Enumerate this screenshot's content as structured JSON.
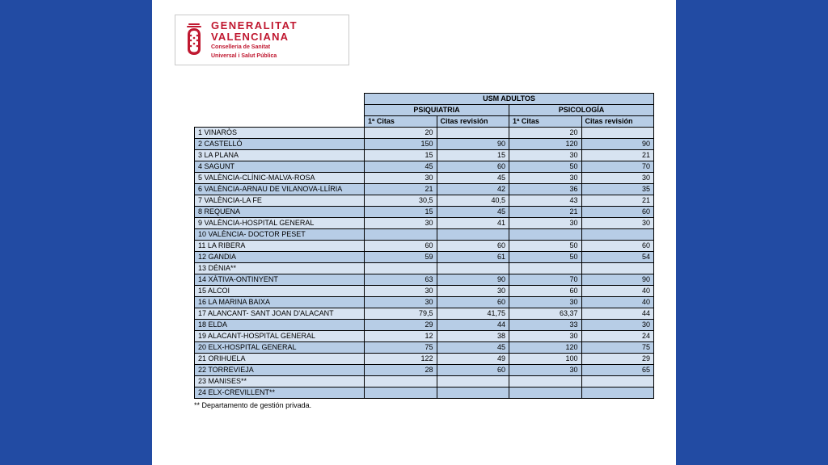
{
  "logo": {
    "line1": "GENERALITAT",
    "line2": "VALENCIANA",
    "sub1": "Conselleria de Sanitat",
    "sub2": "Universal i Salut Pública",
    "brand_color": "#c01830"
  },
  "layout": {
    "side_color": "#224ba3",
    "header_fill": "#b7cde6",
    "row_fill_a": "#d7e3f1",
    "row_fill_b": "#b7cde6"
  },
  "table": {
    "top_header": "USM ADULTOS",
    "group1": "PSIQUIATRIA",
    "group2": "PSICOLOGÍA",
    "col1": "1ª Citas",
    "col2": "Citas revisión",
    "col3": "1ª Citas",
    "col4": "Citas revisión",
    "footnote": "** Departamento de gestión privada.",
    "rows": [
      {
        "label": "1 VINARÒS",
        "v": [
          "20",
          "",
          "20",
          ""
        ]
      },
      {
        "label": "2 CASTELLÓ",
        "v": [
          "150",
          "90",
          "120",
          "90"
        ]
      },
      {
        "label": "3 LA PLANA",
        "v": [
          "15",
          "15",
          "30",
          "21"
        ]
      },
      {
        "label": "4 SAGUNT",
        "v": [
          "45",
          "60",
          "50",
          "70"
        ]
      },
      {
        "label": "5 VALÈNCIA-CLÍNIC-MALVA-ROSA",
        "v": [
          "30",
          "45",
          "30",
          "30"
        ]
      },
      {
        "label": "6 VALÈNCIA-ARNAU DE VILANOVA-LLÍRIA",
        "v": [
          "21",
          "42",
          "36",
          "35"
        ]
      },
      {
        "label": "7 VALÈNCIA-LA FE",
        "v": [
          "30,5",
          "40,5",
          "43",
          "21"
        ]
      },
      {
        "label": "8 REQUENA",
        "v": [
          "15",
          "45",
          "21",
          "60"
        ]
      },
      {
        "label": "9 VALÈNCIA-HOSPITAL GENERAL",
        "v": [
          "30",
          "41",
          "30",
          "30"
        ]
      },
      {
        "label": "10 VALÈNCIA- DOCTOR PESET",
        "v": [
          "",
          "",
          "",
          ""
        ]
      },
      {
        "label": "11 LA RIBERA",
        "v": [
          "60",
          "60",
          "50",
          "60"
        ]
      },
      {
        "label": "12 GANDIA",
        "v": [
          "59",
          "61",
          "50",
          "54"
        ]
      },
      {
        "label": "13 DÉNIA**",
        "v": [
          "",
          "",
          "",
          ""
        ]
      },
      {
        "label": "14 XÀTIVA-ONTINYENT",
        "v": [
          "63",
          "90",
          "70",
          "90"
        ]
      },
      {
        "label": "15 ALCOI",
        "v": [
          "30",
          "30",
          "60",
          "40"
        ]
      },
      {
        "label": "16 LA MARINA BAIXA",
        "v": [
          "30",
          "60",
          "30",
          "40"
        ]
      },
      {
        "label": "17 ALANCANT- SANT JOAN D'ALACANT",
        "v": [
          "79,5",
          "41,75",
          "63,37",
          "44"
        ]
      },
      {
        "label": "18 ELDA",
        "v": [
          "29",
          "44",
          "33",
          "30"
        ]
      },
      {
        "label": "19 ALACANT-HOSPITAL GENERAL",
        "v": [
          "12",
          "38",
          "30",
          "24"
        ]
      },
      {
        "label": "20 ELX-HOSPITAL GENERAL",
        "v": [
          "75",
          "45",
          "120",
          "75"
        ]
      },
      {
        "label": "21 ORIHUELA",
        "v": [
          "122",
          "49",
          "100",
          "29"
        ]
      },
      {
        "label": "22 TORREVIEJA",
        "v": [
          "28",
          "60",
          "30",
          "65"
        ]
      },
      {
        "label": "23 MANISES**",
        "v": [
          "",
          "",
          "",
          ""
        ]
      },
      {
        "label": "24 ELX-CREVILLENT**",
        "v": [
          "",
          "",
          "",
          ""
        ]
      }
    ]
  }
}
